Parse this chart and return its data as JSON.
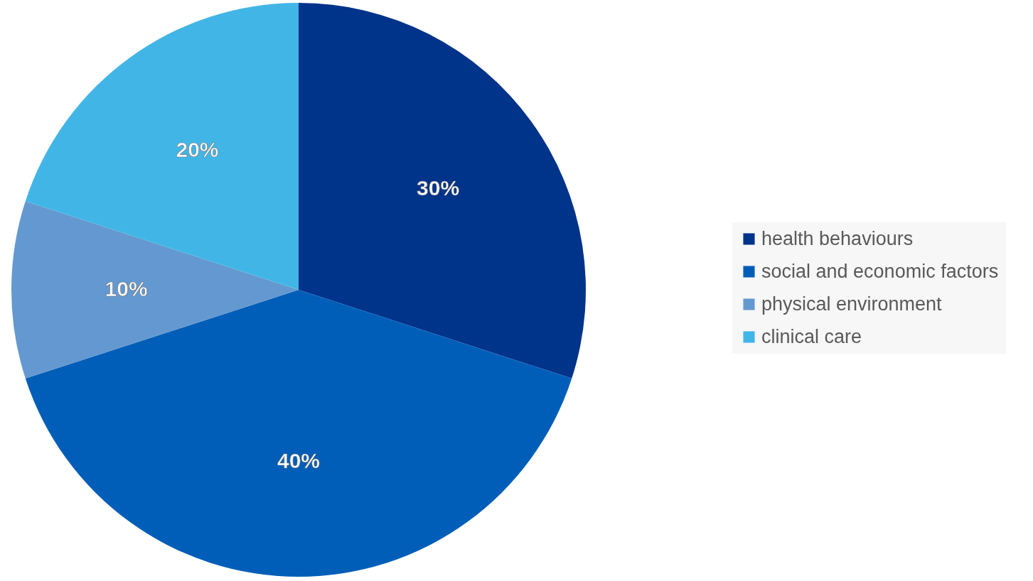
{
  "chart_data": {
    "type": "pie",
    "categories": [
      "health behaviours",
      "social and economic factors",
      "physical environment",
      "clinical care"
    ],
    "values": [
      30,
      40,
      10,
      20
    ],
    "colors": [
      "#00338a",
      "#005eb8",
      "#6399d0",
      "#41b6e6"
    ],
    "value_labels": [
      "30%",
      "40%",
      "10%",
      "20%"
    ],
    "legend": "right"
  }
}
